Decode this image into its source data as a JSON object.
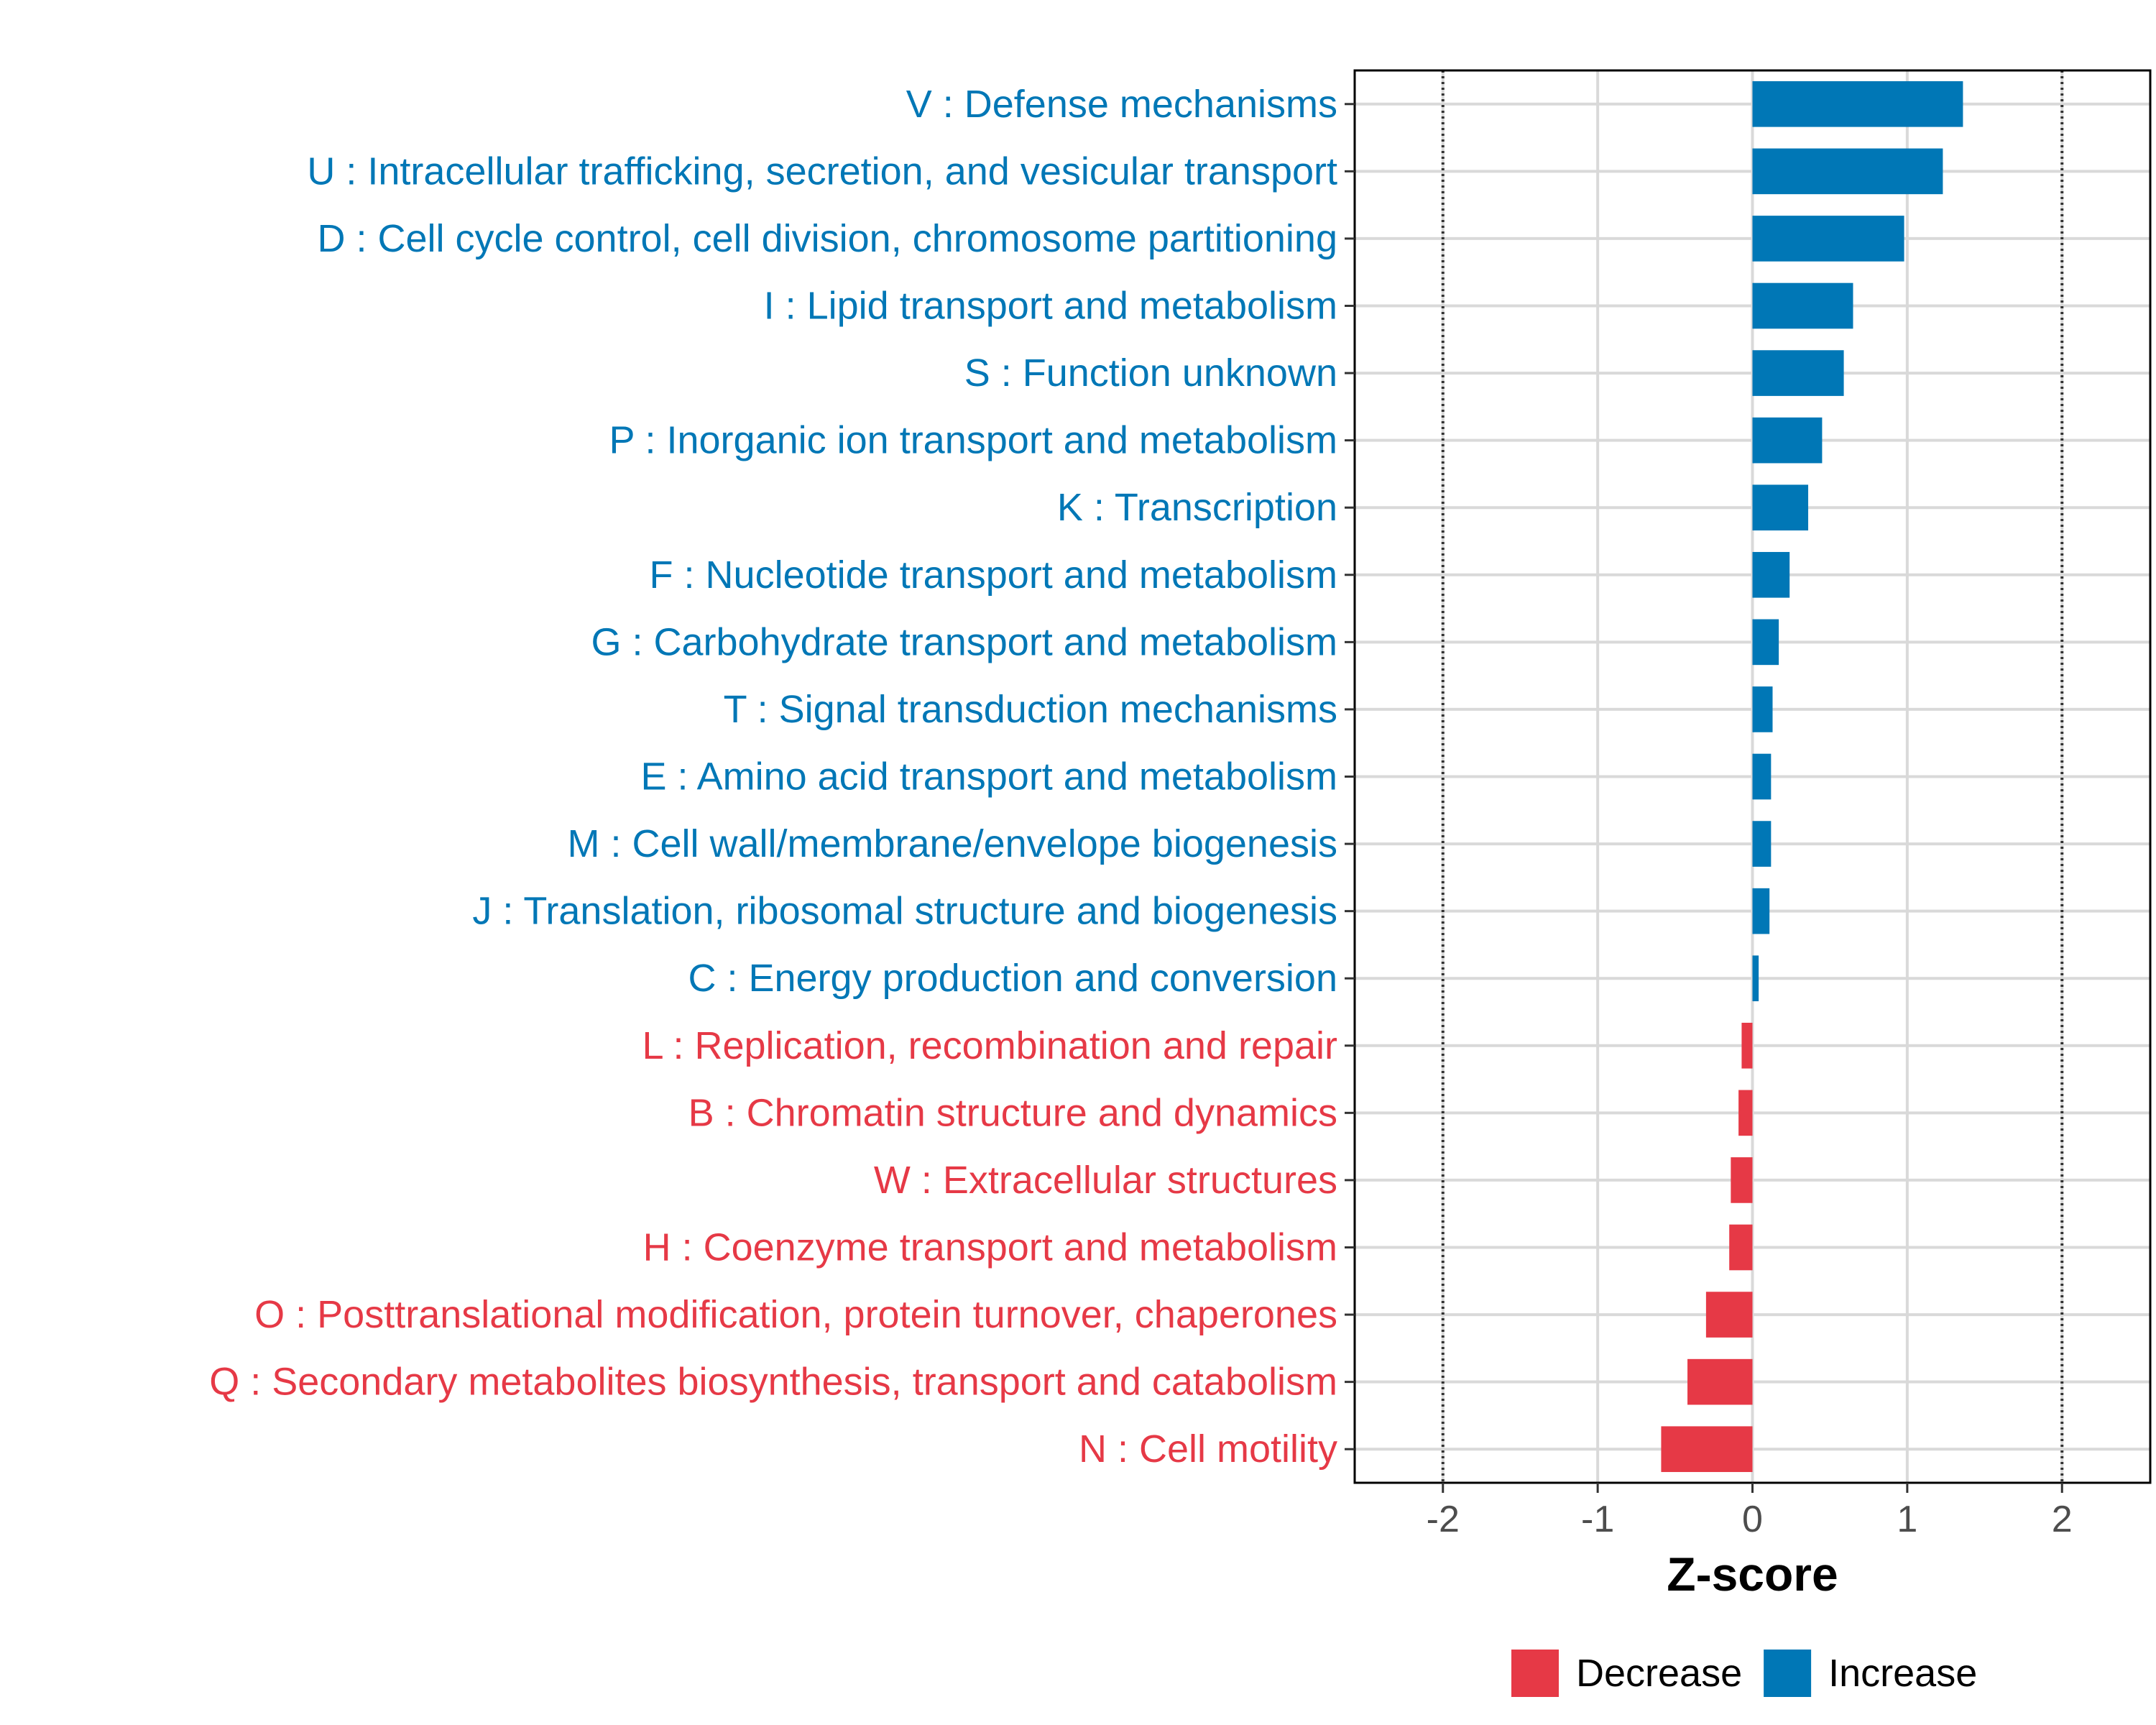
{
  "chart_data": {
    "type": "bar",
    "orientation": "horizontal",
    "xlabel": "Z-score",
    "ylabel": "",
    "xlim": [
      -2.57,
      2.57
    ],
    "xticks": [
      -2,
      -1,
      0,
      1,
      2
    ],
    "reference_lines": [
      -2,
      2
    ],
    "grid": true,
    "legend": {
      "position": "bottom-right",
      "entries": [
        {
          "name": "Decrease",
          "color": "#E63946"
        },
        {
          "name": "Increase",
          "color": "#0077B6"
        }
      ]
    },
    "colors": {
      "Increase": "#0077B6",
      "Decrease": "#E63946"
    },
    "categories": [
      "V : Defense mechanisms",
      "U : Intracellular trafficking, secretion, and vesicular transport",
      "D : Cell cycle control, cell division, chromosome partitioning",
      "I : Lipid transport and metabolism",
      "S : Function unknown",
      "P : Inorganic ion transport and metabolism",
      "K : Transcription",
      "F : Nucleotide transport and metabolism",
      "G : Carbohydrate transport and metabolism",
      "T : Signal transduction mechanisms",
      "E : Amino acid transport and metabolism",
      "M : Cell wall/membrane/envelope biogenesis",
      "J : Translation, ribosomal structure and biogenesis",
      "C : Energy production and conversion",
      "L : Replication, recombination and repair",
      "B : Chromatin structure and dynamics",
      "W : Extracellular structures",
      "H : Coenzyme transport and metabolism",
      "O : Posttranslational modification, protein turnover, chaperones",
      "Q : Secondary metabolites biosynthesis, transport and catabolism",
      "N : Cell motility"
    ],
    "values": [
      1.36,
      1.23,
      0.98,
      0.65,
      0.59,
      0.45,
      0.36,
      0.24,
      0.17,
      0.13,
      0.12,
      0.12,
      0.11,
      0.04,
      -0.07,
      -0.09,
      -0.14,
      -0.15,
      -0.3,
      -0.42,
      -0.59
    ],
    "groups": [
      "Increase",
      "Increase",
      "Increase",
      "Increase",
      "Increase",
      "Increase",
      "Increase",
      "Increase",
      "Increase",
      "Increase",
      "Increase",
      "Increase",
      "Increase",
      "Increase",
      "Decrease",
      "Decrease",
      "Decrease",
      "Decrease",
      "Decrease",
      "Decrease",
      "Decrease"
    ]
  }
}
